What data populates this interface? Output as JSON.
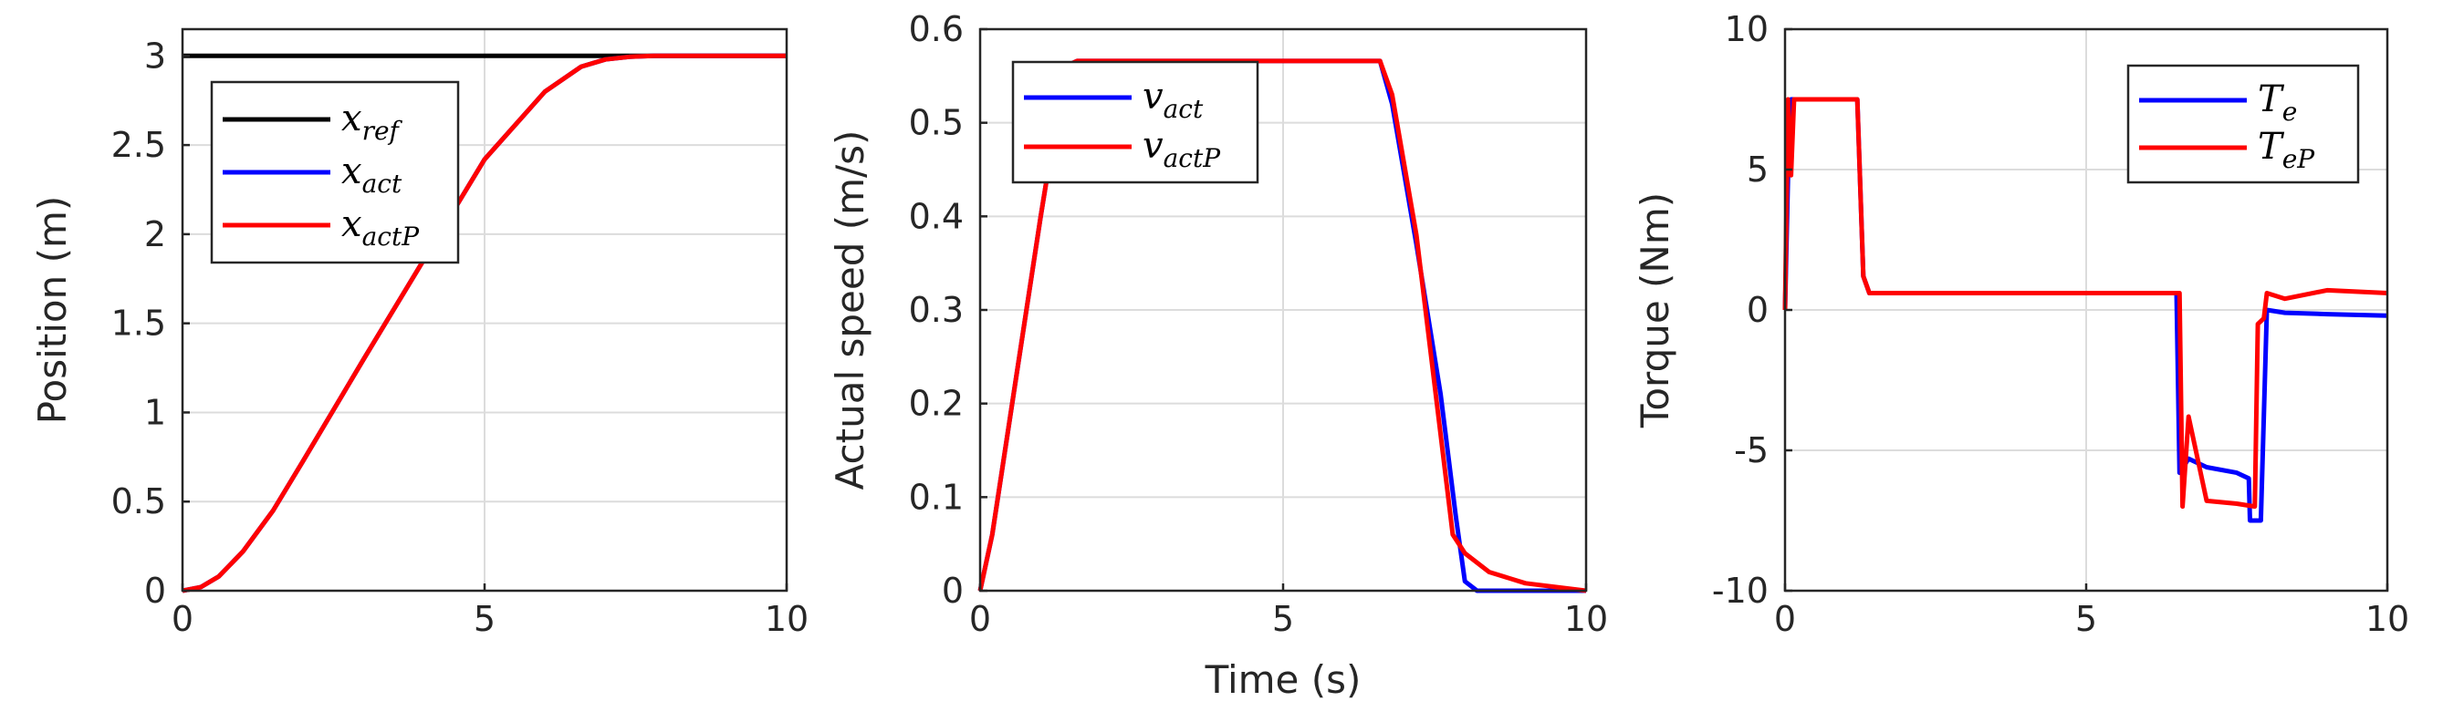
{
  "chart_data": [
    {
      "type": "line",
      "ylabel": "Position (m)",
      "xlabel": "",
      "xlim": [
        0,
        10
      ],
      "ylim": [
        0,
        3.15
      ],
      "xticks": [
        "0",
        "5",
        "10"
      ],
      "yticks": [
        "0",
        "0.5",
        "1",
        "1.5",
        "2",
        "2.5",
        "3"
      ],
      "grid": true,
      "legend_position": "top-left",
      "series": [
        {
          "name": "x",
          "sub": "ref",
          "color": "#000000",
          "x": [
            0,
            10
          ],
          "y": [
            3,
            3
          ]
        },
        {
          "name": "x",
          "sub": "act",
          "color": "#0000ff",
          "x": [
            0,
            0.3,
            0.6,
            1.0,
            1.5,
            2.0,
            3.0,
            4.0,
            5.0,
            6.0,
            6.6,
            7.0,
            7.4,
            7.8,
            8.2,
            10
          ],
          "y": [
            0,
            0.02,
            0.08,
            0.22,
            0.45,
            0.73,
            1.3,
            1.86,
            2.42,
            2.8,
            2.94,
            2.98,
            2.995,
            3.0,
            3.0,
            3.0
          ]
        },
        {
          "name": "x",
          "sub": "actP",
          "color": "#ff0000",
          "x": [
            0,
            0.3,
            0.6,
            1.0,
            1.5,
            2.0,
            3.0,
            4.0,
            5.0,
            6.0,
            6.6,
            7.0,
            7.4,
            7.8,
            8.2,
            10
          ],
          "y": [
            0,
            0.02,
            0.08,
            0.22,
            0.45,
            0.73,
            1.3,
            1.86,
            2.42,
            2.8,
            2.94,
            2.98,
            2.995,
            3.0,
            3.0,
            3.0
          ]
        }
      ]
    },
    {
      "type": "line",
      "ylabel": "Actual speed (m/s)",
      "xlabel": "Time (s)",
      "xlim": [
        0,
        10
      ],
      "ylim": [
        0,
        0.6
      ],
      "xticks": [
        "0",
        "5",
        "10"
      ],
      "yticks": [
        "0",
        "0.1",
        "0.2",
        "0.3",
        "0.4",
        "0.5",
        "0.6"
      ],
      "grid": true,
      "legend_position": "top-left",
      "series": [
        {
          "name": "v",
          "sub": "act",
          "color": "#0000ff",
          "x": [
            0,
            0.2,
            0.6,
            1.0,
            1.4,
            1.6,
            3.0,
            5.0,
            6.6,
            6.8,
            7.2,
            7.6,
            7.85,
            8.0,
            8.2,
            10
          ],
          "y": [
            0,
            0.06,
            0.23,
            0.4,
            0.56,
            0.566,
            0.566,
            0.566,
            0.566,
            0.52,
            0.37,
            0.21,
            0.08,
            0.01,
            0.0,
            0.0
          ]
        },
        {
          "name": "v",
          "sub": "actP",
          "color": "#ff0000",
          "x": [
            0,
            0.2,
            0.6,
            1.0,
            1.4,
            1.6,
            3.0,
            5.0,
            6.6,
            6.8,
            7.2,
            7.5,
            7.8,
            8.0,
            8.4,
            9.0,
            10
          ],
          "y": [
            0,
            0.06,
            0.23,
            0.4,
            0.56,
            0.566,
            0.566,
            0.566,
            0.566,
            0.53,
            0.38,
            0.22,
            0.06,
            0.04,
            0.02,
            0.008,
            0.0
          ]
        }
      ]
    },
    {
      "type": "line",
      "ylabel": "Torque (Nm)",
      "xlabel": "",
      "xlim": [
        0,
        10
      ],
      "ylim": [
        -10,
        10
      ],
      "xticks": [
        "0",
        "5",
        "10"
      ],
      "yticks": [
        "-10",
        "-5",
        "0",
        "5",
        "10"
      ],
      "grid": true,
      "legend_position": "top-right",
      "series": [
        {
          "name": "T",
          "sub": "e",
          "color": "#0000ff",
          "x": [
            0,
            0.05,
            0.1,
            0.2,
            0.4,
            0.8,
            1.2,
            1.3,
            1.4,
            2.0,
            3.0,
            4.0,
            5.0,
            6.0,
            6.5,
            6.55,
            6.7,
            7.0,
            7.5,
            7.7,
            7.72,
            7.9,
            8.0,
            8.3,
            9.0,
            10
          ],
          "y": [
            0,
            4.8,
            7.5,
            7.5,
            7.5,
            7.5,
            7.5,
            1.2,
            0.6,
            0.6,
            0.6,
            0.6,
            0.6,
            0.6,
            0.6,
            -5.8,
            -5.3,
            -5.6,
            -5.8,
            -6.0,
            -7.5,
            -7.5,
            0.0,
            -0.1,
            -0.15,
            -0.2
          ]
        },
        {
          "name": "T",
          "sub": "eP",
          "color": "#ff0000",
          "x": [
            0,
            0.05,
            0.1,
            0.15,
            0.2,
            0.4,
            0.8,
            1.2,
            1.3,
            1.4,
            2.0,
            3.0,
            4.0,
            5.0,
            6.0,
            6.55,
            6.6,
            6.7,
            7.0,
            7.5,
            7.8,
            7.85,
            7.95,
            8.0,
            8.3,
            9.0,
            10
          ],
          "y": [
            0,
            7.5,
            4.8,
            7.5,
            7.5,
            7.5,
            7.5,
            7.5,
            1.2,
            0.6,
            0.6,
            0.6,
            0.6,
            0.6,
            0.6,
            0.6,
            -7.0,
            -3.8,
            -6.8,
            -6.9,
            -7.0,
            -0.5,
            -0.3,
            0.6,
            0.4,
            0.7,
            0.6
          ]
        }
      ]
    }
  ]
}
